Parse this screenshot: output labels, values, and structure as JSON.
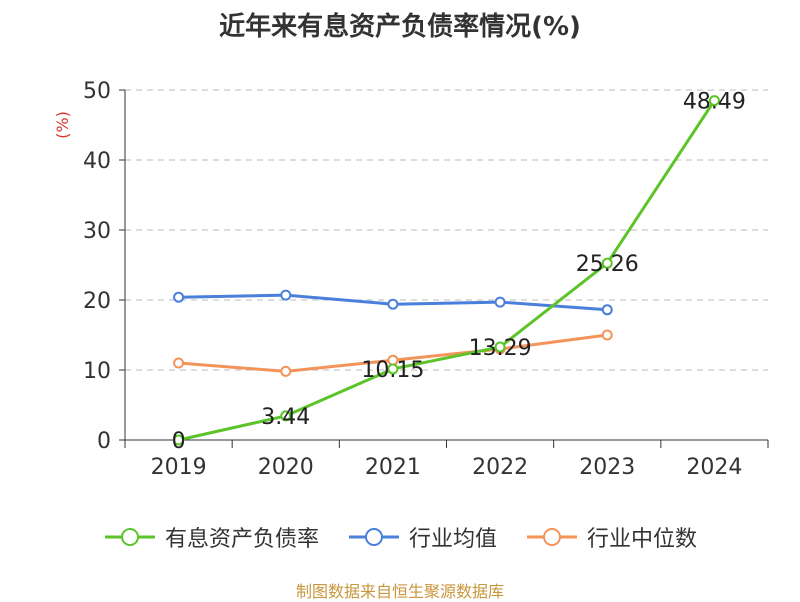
{
  "title": "近年来有息资产负债率情况(%)",
  "footer": "制图数据来自恒生聚源数据库",
  "chart_data": {
    "type": "line",
    "title": "近年来有息资产负债率情况(%)",
    "xlabel": "",
    "ylabel": "(%)",
    "categories": [
      "2019",
      "2020",
      "2021",
      "2022",
      "2023",
      "2024"
    ],
    "ylim": [
      0,
      50
    ],
    "yticks": [
      0,
      10,
      20,
      30,
      40,
      50
    ],
    "grid": true,
    "legend_position": "bottom",
    "series": [
      {
        "name": "有息资产负债率",
        "color": "#5cc328",
        "values": [
          0,
          3.44,
          10.15,
          13.29,
          25.26,
          48.49
        ],
        "data_labels": [
          "0",
          "3.44",
          "10.15",
          "13.29",
          "25.26",
          "48.49"
        ]
      },
      {
        "name": "行业均值",
        "color": "#4a7fdc",
        "values": [
          20.4,
          20.7,
          19.4,
          19.7,
          18.6,
          null
        ],
        "data_labels": []
      },
      {
        "name": "行业中位数",
        "color": "#f4935a",
        "values": [
          11.0,
          9.8,
          11.4,
          13.0,
          15.0,
          null
        ],
        "data_labels": []
      }
    ]
  }
}
